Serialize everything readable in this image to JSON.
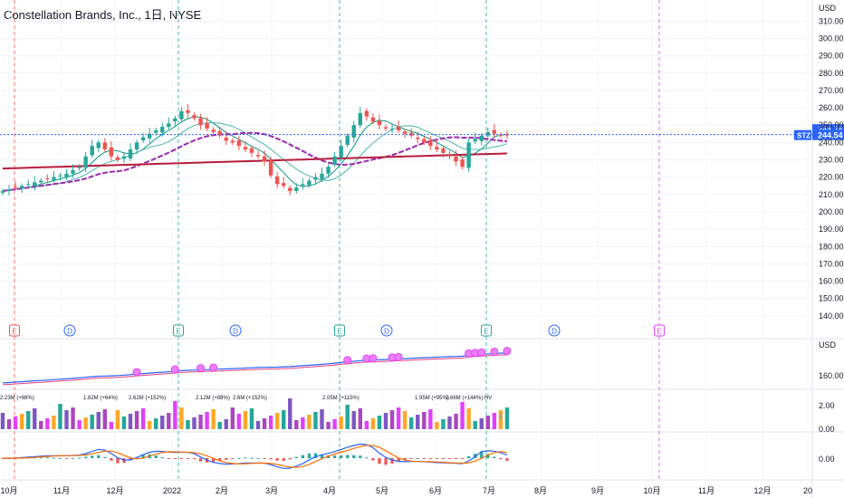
{
  "header": {
    "title": "Constellation Brands, Inc., 1日, NYSE"
  },
  "colors": {
    "price_line": "#2962ff",
    "up": "#26a69a",
    "down": "#ef5350",
    "ma_fast": "#089981",
    "ma_slow": "#9c27b0",
    "ma_long": "#b71c3c",
    "earnings_line": "#26a69a",
    "dividend": "#2962ff",
    "future_earnings": "#e040fb",
    "ticker_tag": "#2962ff"
  },
  "price_axis": {
    "currency": "USD",
    "ticks": [
      "310.00",
      "300.00",
      "290.00",
      "280.00",
      "270.00",
      "260.00",
      "250.00",
      "240.00",
      "230.00",
      "220.00",
      "210.00",
      "200.00",
      "190.00",
      "180.00",
      "170.00",
      "160.00",
      "150.00",
      "140.00"
    ],
    "current_upper": "244.74",
    "current_lower": "244.54",
    "ticker": "STZ"
  },
  "panel2_axis": {
    "currency": "USD",
    "tick": "160.00"
  },
  "volume_axis": {
    "ticks": [
      "2.00",
      "0.00"
    ]
  },
  "macd_axis": {
    "tick": "0.00"
  },
  "time_axis": {
    "labels": [
      "10月",
      "11月",
      "12月",
      "2022",
      "2月",
      "3月",
      "4月",
      "5月",
      "6月",
      "7月",
      "8月",
      "9月",
      "10月",
      "11月",
      "12月",
      "20"
    ]
  },
  "events": [
    {
      "letter": "E",
      "kind": "earnings-past"
    },
    {
      "letter": "D",
      "kind": "dividend"
    },
    {
      "letter": "E",
      "kind": "earnings"
    },
    {
      "letter": "D",
      "kind": "dividend"
    },
    {
      "letter": "E",
      "kind": "earnings"
    },
    {
      "letter": "D",
      "kind": "dividend"
    },
    {
      "letter": "E",
      "kind": "earnings"
    },
    {
      "letter": "D",
      "kind": "dividend"
    },
    {
      "letter": "E",
      "kind": "earnings-future"
    }
  ],
  "volume_annotations": [
    "2.23M (+88%)",
    "1.82M (+64%)",
    "2.62M (+152%)",
    "2.12M (+88%)",
    "2.6M (+152%)",
    "2.05M (+115%)",
    "1.95M (+95%)",
    "2.66M (+144%) HV"
  ],
  "chart_data": {
    "type": "candlestick",
    "ylim": [
      130,
      318
    ],
    "price_ticks": [
      310,
      300,
      290,
      280,
      270,
      260,
      250,
      240,
      230,
      220,
      210,
      200,
      190,
      180,
      170,
      160,
      150,
      140
    ],
    "last_close": 244.54,
    "series": [
      {
        "name": "",
        "type": "candlestick_close",
        "values": [
          212,
          213,
          214,
          215,
          216,
          217,
          218,
          219,
          220,
          221,
          222,
          224,
          226,
          232,
          238,
          240,
          236,
          232,
          230,
          232,
          236,
          240,
          243,
          245,
          247,
          249,
          251,
          254,
          258,
          257,
          254,
          250,
          248,
          246,
          244,
          241,
          240,
          238,
          236,
          234,
          232,
          229,
          221,
          216,
          215,
          212,
          214,
          216,
          218,
          220,
          222,
          226,
          232,
          238,
          244,
          250,
          257,
          255,
          252,
          250,
          248,
          248,
          247,
          245,
          244,
          242,
          240,
          238,
          236,
          234,
          232,
          229,
          226,
          240,
          242,
          244,
          246,
          245,
          244,
          244.54
        ]
      }
    ]
  }
}
